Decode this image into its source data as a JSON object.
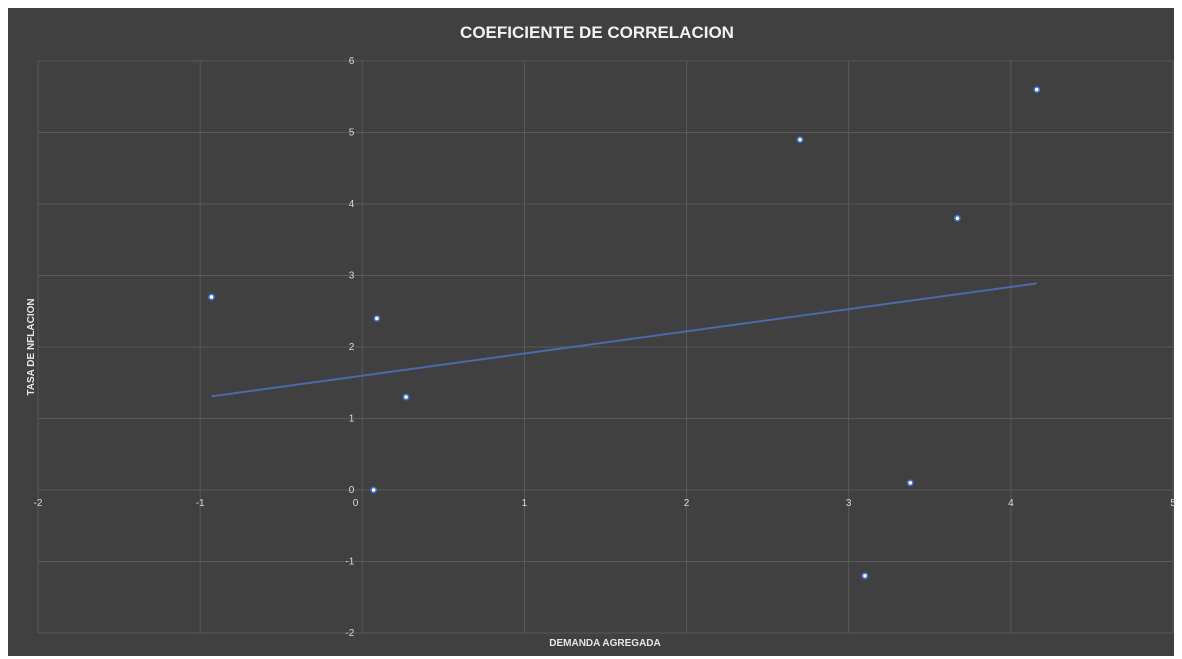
{
  "chart_data": {
    "type": "scatter",
    "title": "COEFICIENTE DE CORRELACION",
    "xlabel": "DEMANDA AGREGADA",
    "ylabel": "TASA DE NFLACION",
    "xlim": [
      -2,
      5
    ],
    "ylim": [
      -2,
      6
    ],
    "x_ticks": [
      -2,
      -1,
      0,
      1,
      2,
      3,
      4,
      5
    ],
    "y_ticks": [
      -2,
      -1,
      0,
      1,
      2,
      3,
      4,
      5,
      6
    ],
    "grid": true,
    "legend": "none",
    "series": [
      {
        "points": [
          {
            "x": -0.93,
            "y": 2.7
          },
          {
            "x": 0.07,
            "y": 0.0
          },
          {
            "x": 0.09,
            "y": 2.4
          },
          {
            "x": 0.27,
            "y": 1.3
          },
          {
            "x": 2.7,
            "y": 4.9
          },
          {
            "x": 3.1,
            "y": -1.2
          },
          {
            "x": 3.38,
            "y": 0.1
          },
          {
            "x": 3.67,
            "y": 3.8
          },
          {
            "x": 4.16,
            "y": 5.6
          }
        ]
      }
    ],
    "trendline": {
      "type": "linear",
      "x_range": [
        -0.93,
        4.16
      ],
      "y_range": [
        1.31,
        2.89
      ]
    },
    "colors": {
      "background": "#404040",
      "grid": "#595959",
      "marker_fill": "#ffffff",
      "marker_edge": "#4472c4",
      "trendline": "#4a6aa8",
      "text": "#d9d9d9"
    }
  }
}
